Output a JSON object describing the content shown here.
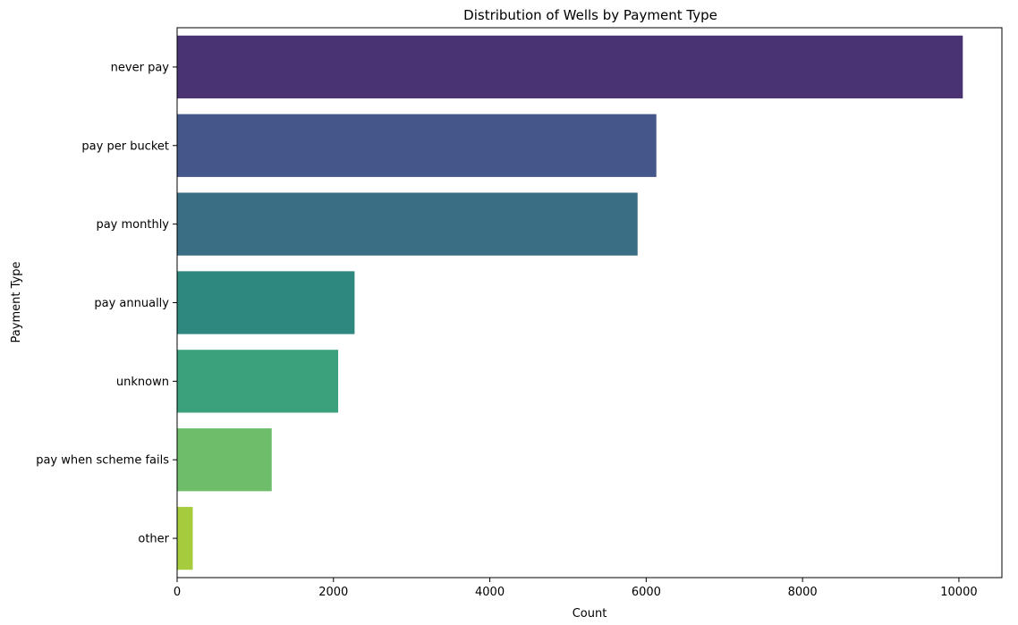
{
  "chart_data": {
    "type": "bar",
    "orientation": "horizontal",
    "title": "Distribution of Wells by Payment Type",
    "xlabel": "Count",
    "ylabel": "Payment Type",
    "categories": [
      "never pay",
      "pay per bucket",
      "pay monthly",
      "pay annually",
      "unknown",
      "pay when scheme fails",
      "other"
    ],
    "values": [
      10050,
      6130,
      5890,
      2270,
      2060,
      1210,
      200
    ],
    "colors": [
      "#4a3373",
      "#45578a",
      "#3a6e84",
      "#2e8880",
      "#3ba07c",
      "#6ebd6b",
      "#a6cb3c"
    ],
    "xlim": [
      0,
      10550
    ],
    "xticks": [
      0,
      2000,
      4000,
      6000,
      8000,
      10000
    ],
    "grid": false,
    "legend": "none"
  }
}
